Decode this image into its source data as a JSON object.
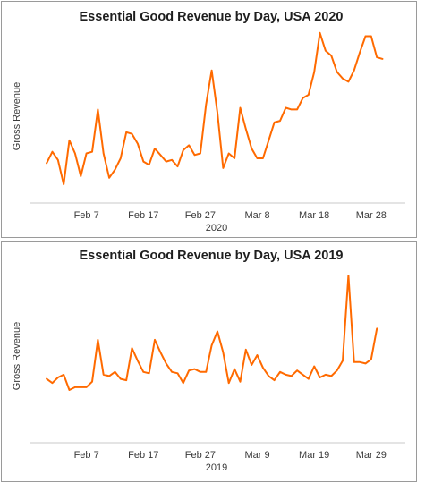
{
  "colors": {
    "line": "#ff6a00",
    "axis": "#c8c8c8"
  },
  "chart_data": [
    {
      "type": "line",
      "title": "Essential Good Revenue by Day, USA 2020",
      "xlabel": "2020",
      "ylabel": "Gross Revenue",
      "grid": false,
      "x_ticks": [
        "Feb 7",
        "Feb 17",
        "Feb 27",
        "Mar 8",
        "Mar 18",
        "Mar 28"
      ],
      "x_tick_day_offsets": [
        7,
        17,
        27,
        37,
        47,
        57
      ],
      "x_range_day_offsets": [
        -3,
        63
      ],
      "ylim": [
        0,
        100
      ],
      "series": [
        {
          "values": [
            19,
            26,
            21,
            6,
            33,
            25,
            11,
            25,
            26,
            52,
            25,
            10,
            15,
            22,
            38,
            37,
            31,
            20,
            18,
            28,
            24,
            20,
            21,
            17,
            27,
            30,
            24,
            25,
            55,
            76,
            50,
            16,
            25,
            22,
            53,
            40,
            28,
            22,
            22,
            33,
            44,
            45,
            53,
            52,
            52,
            59,
            61,
            75,
            99,
            88,
            85,
            75,
            71,
            69,
            76,
            87,
            97,
            97,
            84,
            83
          ]
        }
      ]
    },
    {
      "type": "line",
      "title": "Essential Good Revenue by Day, USA 2019",
      "xlabel": "2019",
      "ylabel": "Gross Revenue",
      "grid": false,
      "x_ticks": [
        "Feb 7",
        "Feb 17",
        "Feb 27",
        "Mar 9",
        "Mar 19",
        "Mar 29"
      ],
      "x_tick_day_offsets": [
        7,
        17,
        27,
        37,
        47,
        57
      ],
      "x_range_day_offsets": [
        -3,
        63
      ],
      "ylim": [
        0,
        100
      ],
      "series": [
        {
          "values": [
            24,
            21,
            25,
            27,
            16,
            18,
            18,
            18,
            22,
            52,
            27,
            26,
            29,
            24,
            23,
            46,
            37,
            29,
            28,
            52,
            43,
            35,
            29,
            28,
            21,
            30,
            31,
            29,
            29,
            48,
            58,
            43,
            21,
            31,
            22,
            45,
            34,
            41,
            32,
            26,
            23,
            29,
            27,
            26,
            30,
            27,
            24,
            33,
            25,
            27,
            26,
            30,
            37,
            98,
            36,
            36,
            35,
            38,
            60
          ]
        }
      ]
    }
  ]
}
